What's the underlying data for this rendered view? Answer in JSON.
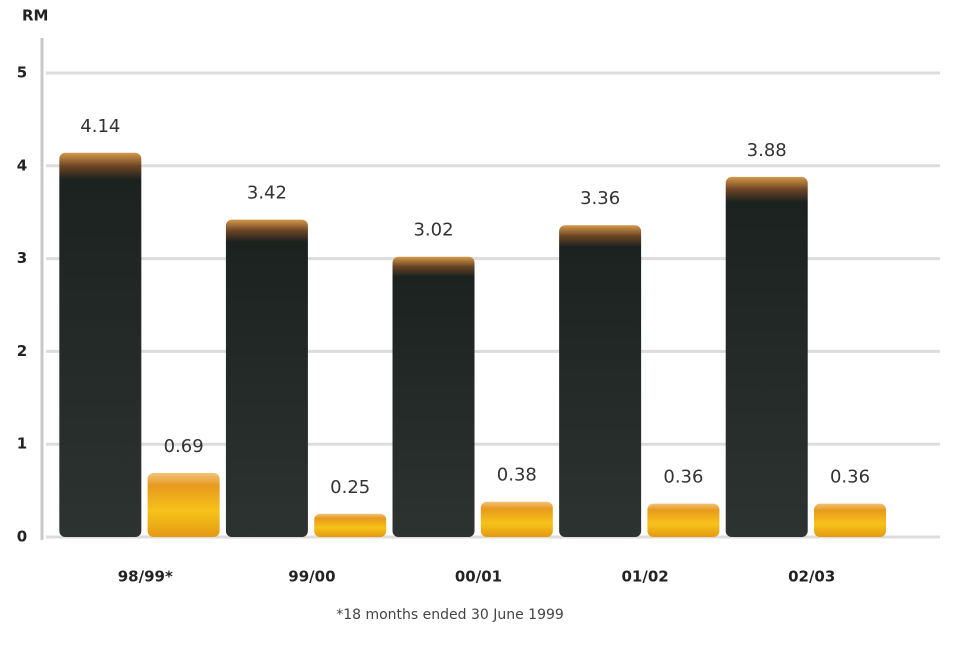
{
  "chart_data": {
    "type": "bar",
    "y_label": "RM",
    "footnote": "*18 months ended 30 June 1999",
    "categories": [
      "98/99*",
      "99/00",
      "00/01",
      "01/02",
      "02/03"
    ],
    "series": [
      {
        "color": "#1f2522",
        "values": [
          4.14,
          3.42,
          3.02,
          3.36,
          3.88
        ]
      },
      {
        "color": "#f0a91a",
        "values": [
          0.69,
          0.25,
          0.38,
          0.36,
          0.36
        ]
      }
    ],
    "ylim": [
      0,
      5
    ],
    "yticks": [
      0,
      1,
      2,
      3,
      4,
      5
    ],
    "grid": true
  }
}
